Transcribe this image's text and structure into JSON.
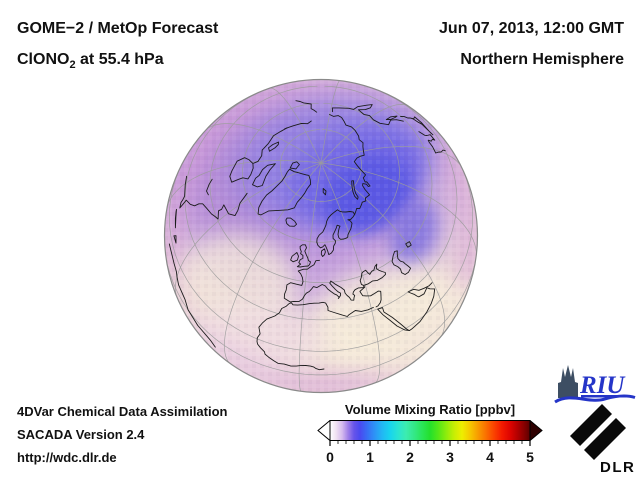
{
  "header": {
    "product": "GOME−2 / MetOp Forecast",
    "species_prefix": "ClONO",
    "species_sub": "2",
    "species_suffix": " at 55.4 hPa",
    "datetime": "Jun 07, 2013, 12:00 GMT",
    "region": "Northern Hemisphere"
  },
  "globe": {
    "projection": "orthographic northern hemisphere",
    "colors": {
      "base": "#f2e4da",
      "lavender": "#cba9e0",
      "purple": "#b38ad8",
      "blue_mid": "#7168e6",
      "blue_core": "#5a58e4",
      "rim_magenta": "#d39ad8",
      "cream": "#f6ecda",
      "grid": "#9b9b9b",
      "coast": "#1c1c1c",
      "limb": "#8a8a8a"
    },
    "field": {
      "units": "ppbv",
      "polar_maximum_approx": 1.5,
      "polar_maximum_location": "Barents/Kara Sea sector",
      "midlatitude_band_approx": 0.5,
      "subtropics_approx": 0.15
    }
  },
  "colorbar": {
    "title": "Volume Mixing Ratio [ppbv]",
    "min": 0,
    "max": 5,
    "ticks": [
      "0",
      "1",
      "2",
      "3",
      "4",
      "5"
    ],
    "gradient": [
      [
        0,
        "#ffffff"
      ],
      [
        0.03,
        "#f0e2f2"
      ],
      [
        0.06,
        "#d6bcee"
      ],
      [
        0.09,
        "#a080e8"
      ],
      [
        0.12,
        "#6654ea"
      ],
      [
        0.15,
        "#4a4af0"
      ],
      [
        0.18,
        "#3a68f4"
      ],
      [
        0.22,
        "#2e90f6"
      ],
      [
        0.26,
        "#22b6f4"
      ],
      [
        0.3,
        "#18d4ee"
      ],
      [
        0.34,
        "#2ae4d2"
      ],
      [
        0.38,
        "#3cecb0"
      ],
      [
        0.42,
        "#34e888"
      ],
      [
        0.46,
        "#2ae658"
      ],
      [
        0.5,
        "#24e02c"
      ],
      [
        0.54,
        "#52e618"
      ],
      [
        0.58,
        "#8cec0c"
      ],
      [
        0.62,
        "#c6ee04"
      ],
      [
        0.66,
        "#eeee00"
      ],
      [
        0.7,
        "#f6c800"
      ],
      [
        0.74,
        "#f89c00"
      ],
      [
        0.78,
        "#fa7000"
      ],
      [
        0.82,
        "#fa4200"
      ],
      [
        0.86,
        "#f41a00"
      ],
      [
        0.9,
        "#de0400"
      ],
      [
        0.94,
        "#b00000"
      ],
      [
        0.97,
        "#880000"
      ],
      [
        1,
        "#5c0000"
      ]
    ],
    "arrow_left_color": "#ffffff",
    "arrow_right_color": "#2e0000"
  },
  "footer": {
    "line1": "4DVar Chemical Data Assimilation",
    "line2": "SACADA Version 2.4",
    "line3": "http://wdc.dlr.de"
  },
  "logos": {
    "riu_text": "RIU",
    "dlr_text": "DLR",
    "riu_blue": "#2535c8",
    "cathedral_color": "#3d4e63"
  }
}
